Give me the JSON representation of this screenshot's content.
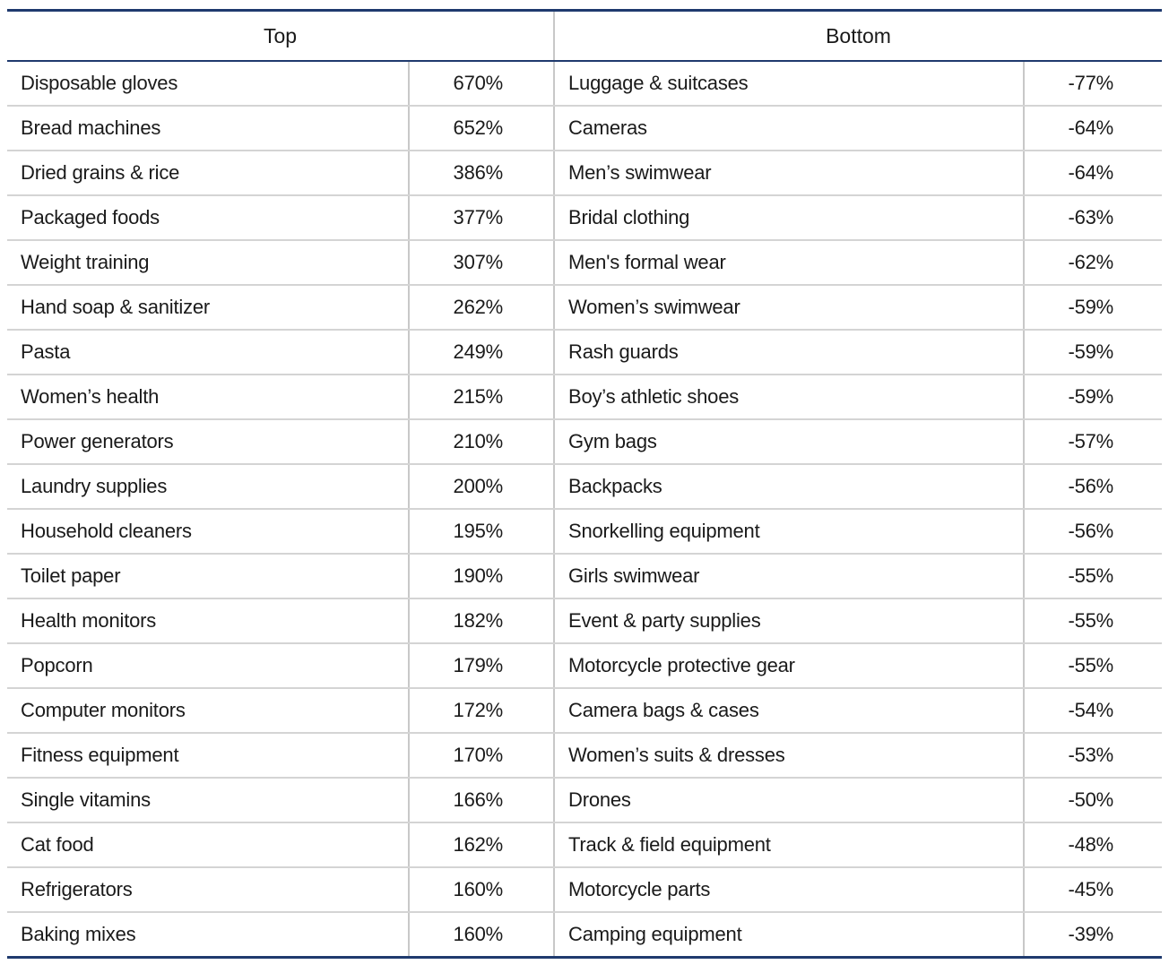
{
  "chart_data": {
    "type": "table",
    "columns": [
      "Top",
      "Bottom"
    ],
    "top": [
      {
        "category": "Disposable gloves",
        "value": "670%"
      },
      {
        "category": "Bread machines",
        "value": "652%"
      },
      {
        "category": "Dried grains & rice",
        "value": "386%"
      },
      {
        "category": "Packaged foods",
        "value": "377%"
      },
      {
        "category": "Weight training",
        "value": "307%"
      },
      {
        "category": "Hand soap & sanitizer",
        "value": "262%"
      },
      {
        "category": "Pasta",
        "value": "249%"
      },
      {
        "category": "Women’s health",
        "value": "215%"
      },
      {
        "category": "Power generators",
        "value": "210%"
      },
      {
        "category": "Laundry supplies",
        "value": "200%"
      },
      {
        "category": "Household cleaners",
        "value": "195%"
      },
      {
        "category": "Toilet paper",
        "value": "190%"
      },
      {
        "category": "Health monitors",
        "value": "182%"
      },
      {
        "category": "Popcorn",
        "value": "179%"
      },
      {
        "category": "Computer monitors",
        "value": "172%"
      },
      {
        "category": "Fitness equipment",
        "value": "170%"
      },
      {
        "category": "Single vitamins",
        "value": "166%"
      },
      {
        "category": "Cat food",
        "value": "162%"
      },
      {
        "category": "Refrigerators",
        "value": "160%"
      },
      {
        "category": "Baking mixes",
        "value": "160%"
      }
    ],
    "bottom": [
      {
        "category": "Luggage & suitcases",
        "value": "-77%"
      },
      {
        "category": "Cameras",
        "value": "-64%"
      },
      {
        "category": "Men’s swimwear",
        "value": "-64%"
      },
      {
        "category": "Bridal clothing",
        "value": "-63%"
      },
      {
        "category": "Men's formal wear",
        "value": "-62%"
      },
      {
        "category": "Women’s swimwear",
        "value": "-59%"
      },
      {
        "category": "Rash guards",
        "value": "-59%"
      },
      {
        "category": "Boy’s athletic shoes",
        "value": "-59%"
      },
      {
        "category": "Gym bags",
        "value": "-57%"
      },
      {
        "category": "Backpacks",
        "value": "-56%"
      },
      {
        "category": "Snorkelling equipment",
        "value": "-56%"
      },
      {
        "category": "Girls swimwear",
        "value": "-55%"
      },
      {
        "category": "Event & party supplies",
        "value": "-55%"
      },
      {
        "category": "Motorcycle protective gear",
        "value": "-55%"
      },
      {
        "category": "Camera bags & cases",
        "value": "-54%"
      },
      {
        "category": "Women’s suits & dresses",
        "value": "-53%"
      },
      {
        "category": "Drones",
        "value": "-50%"
      },
      {
        "category": "Track & field equipment",
        "value": "-48%"
      },
      {
        "category": "Motorcycle parts",
        "value": "-45%"
      },
      {
        "category": "Camping equipment",
        "value": "-39%"
      }
    ]
  },
  "colors": {
    "rule_navy": "#1f3a6e",
    "gridline": "#d4d4d4",
    "column_divider": "#c8c8c8",
    "text": "#1a1a1a"
  }
}
